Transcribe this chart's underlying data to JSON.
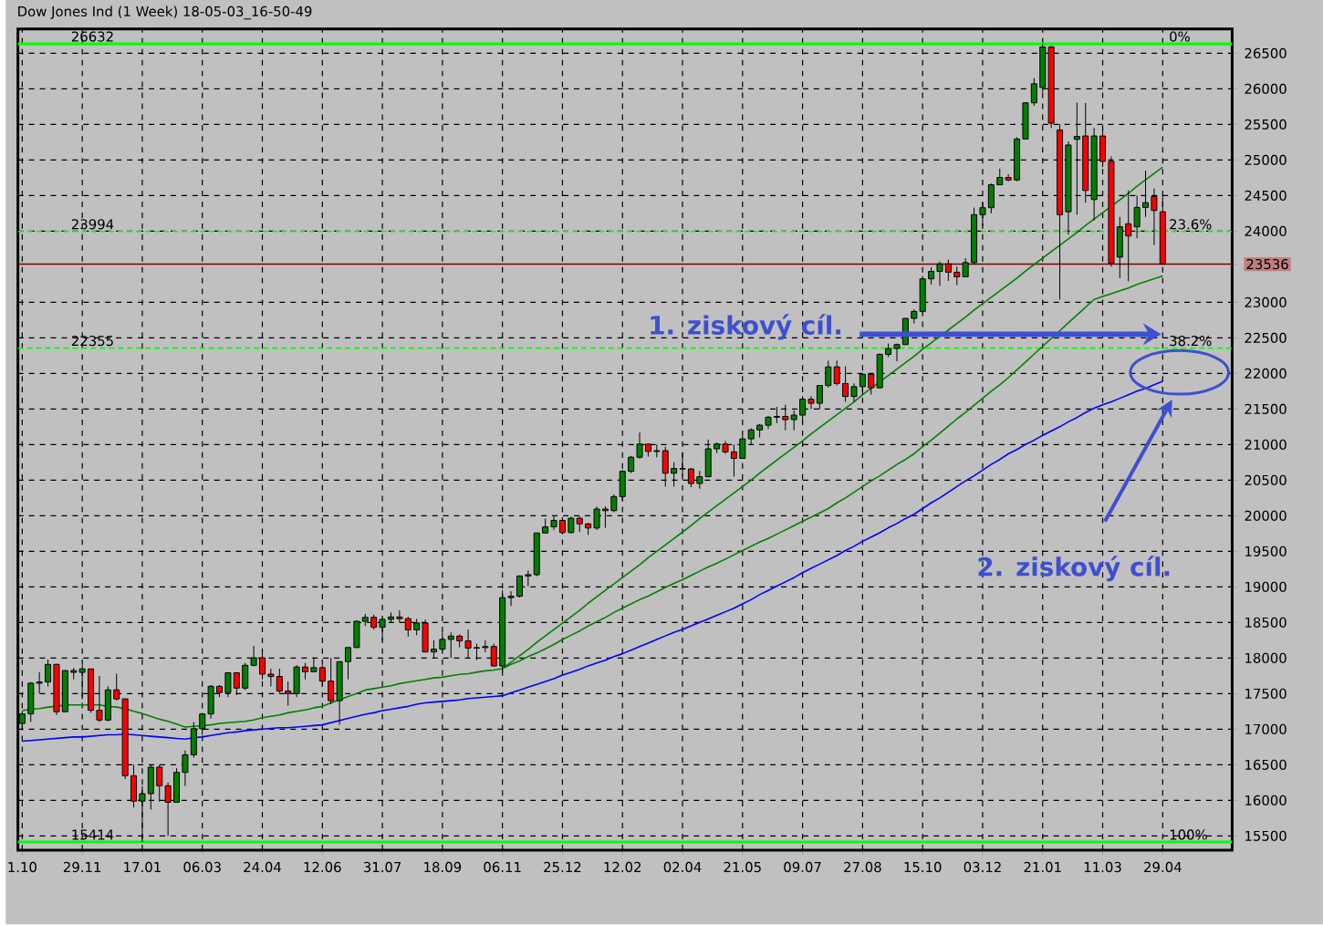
{
  "chart_data": {
    "type": "candlestick",
    "title": "Dow Jones Ind (1 Week) 18-05-03_16-50-49",
    "categories": [
      "1.10",
      null,
      null,
      null,
      null,
      null,
      null,
      "29.11",
      null,
      null,
      null,
      null,
      null,
      null,
      "17.01",
      null,
      null,
      null,
      null,
      null,
      null,
      "06.03",
      null,
      null,
      null,
      null,
      null,
      null,
      "24.04",
      null,
      null,
      null,
      null,
      null,
      null,
      "12.06",
      null,
      null,
      null,
      null,
      null,
      null,
      "31.07",
      null,
      null,
      null,
      null,
      null,
      null,
      "18.09",
      null,
      null,
      null,
      null,
      null,
      null,
      "06.11",
      null,
      null,
      null,
      null,
      null,
      null,
      "25.12",
      null,
      null,
      null,
      null,
      null,
      null,
      "12.02",
      null,
      null,
      null,
      null,
      null,
      null,
      "02.04",
      null,
      null,
      null,
      null,
      null,
      null,
      "21.05",
      null,
      null,
      null,
      null,
      null,
      null,
      "09.07",
      null,
      null,
      null,
      null,
      null,
      null,
      "27.08",
      null,
      null,
      null,
      null,
      null,
      null,
      "15.10",
      null,
      null,
      null,
      null,
      null,
      null,
      "03.12",
      null,
      null,
      null,
      null,
      null,
      null,
      "21.01",
      null,
      null,
      null,
      null,
      null,
      null,
      "11.03",
      null,
      null,
      null,
      null,
      null,
      null,
      "29.04"
    ],
    "ohlc": [
      [
        17080,
        17250,
        16990,
        17215
      ],
      [
        17215,
        17660,
        17100,
        17646
      ],
      [
        17646,
        17800,
        17500,
        17663
      ],
      [
        17663,
        17980,
        17600,
        17910
      ],
      [
        17910,
        17920,
        17200,
        17245
      ],
      [
        17245,
        17830,
        17240,
        17823
      ],
      [
        17823,
        17860,
        17700,
        17798
      ],
      [
        17798,
        17900,
        17420,
        17847
      ],
      [
        17847,
        17850,
        17230,
        17265
      ],
      [
        17265,
        17750,
        17100,
        17128
      ],
      [
        17128,
        17600,
        17110,
        17552
      ],
      [
        17552,
        17780,
        17400,
        17425
      ],
      [
        17425,
        17430,
        16300,
        16346
      ],
      [
        16346,
        16500,
        15900,
        15988
      ],
      [
        15988,
        16200,
        15414,
        16093
      ],
      [
        16093,
        16500,
        15870,
        16466
      ],
      [
        16466,
        16500,
        15980,
        16204
      ],
      [
        16204,
        16250,
        15500,
        15973
      ],
      [
        15973,
        16450,
        15970,
        16392
      ],
      [
        16392,
        16700,
        16200,
        16639
      ],
      [
        16639,
        17100,
        16600,
        17006
      ],
      [
        17006,
        17230,
        16920,
        17213
      ],
      [
        17213,
        17620,
        17150,
        17602
      ],
      [
        17602,
        17620,
        17450,
        17515
      ],
      [
        17515,
        17800,
        17450,
        17792
      ],
      [
        17792,
        17800,
        17480,
        17577
      ],
      [
        17577,
        17930,
        17550,
        17897
      ],
      [
        17897,
        18170,
        17880,
        18003
      ],
      [
        18003,
        18080,
        17700,
        17773
      ],
      [
        17773,
        17850,
        17600,
        17740
      ],
      [
        17740,
        17850,
        17500,
        17535
      ],
      [
        17535,
        17670,
        17330,
        17500
      ],
      [
        17500,
        17900,
        17450,
        17873
      ],
      [
        17873,
        17930,
        17700,
        17807
      ],
      [
        17807,
        18010,
        17800,
        17865
      ],
      [
        17865,
        17900,
        17600,
        17675
      ],
      [
        17675,
        18000,
        17350,
        17400
      ],
      [
        17400,
        17950,
        17060,
        17949
      ],
      [
        17949,
        18150,
        17700,
        18147
      ],
      [
        18147,
        18530,
        18140,
        18516
      ],
      [
        18516,
        18620,
        18450,
        18571
      ],
      [
        18571,
        18610,
        18400,
        18432
      ],
      [
        18432,
        18550,
        18250,
        18543
      ],
      [
        18543,
        18640,
        18500,
        18577
      ],
      [
        18577,
        18670,
        18500,
        18553
      ],
      [
        18553,
        18580,
        18300,
        18395
      ],
      [
        18395,
        18550,
        18320,
        18492
      ],
      [
        18492,
        18540,
        18080,
        18085
      ],
      [
        18085,
        18250,
        17990,
        18124
      ],
      [
        18124,
        18360,
        18100,
        18262
      ],
      [
        18262,
        18360,
        18000,
        18308
      ],
      [
        18308,
        18330,
        18150,
        18240
      ],
      [
        18240,
        18400,
        18000,
        18138
      ],
      [
        18138,
        18200,
        17970,
        18146
      ],
      [
        18146,
        18250,
        18080,
        18161
      ],
      [
        18161,
        18200,
        17880,
        17888
      ],
      [
        17888,
        18950,
        17800,
        18848
      ],
      [
        18848,
        18940,
        18730,
        18868
      ],
      [
        18868,
        19160,
        18850,
        19153
      ],
      [
        19153,
        19230,
        19010,
        19171
      ],
      [
        19171,
        19760,
        19150,
        19757
      ],
      [
        19757,
        19960,
        19750,
        19843
      ],
      [
        19843,
        19990,
        19800,
        19934
      ],
      [
        19934,
        19980,
        19740,
        19763
      ],
      [
        19763,
        19990,
        19750,
        19964
      ],
      [
        19964,
        19990,
        19770,
        19886
      ],
      [
        19886,
        19900,
        19730,
        19827
      ],
      [
        19827,
        20130,
        19800,
        20094
      ],
      [
        20094,
        20130,
        19830,
        20071
      ],
      [
        20071,
        20300,
        20050,
        20269
      ],
      [
        20269,
        20640,
        20200,
        20624
      ],
      [
        20624,
        20840,
        20600,
        20822
      ],
      [
        20822,
        21170,
        20800,
        21006
      ],
      [
        21006,
        21010,
        20830,
        20903
      ],
      [
        20903,
        21000,
        20820,
        20914
      ],
      [
        20914,
        20970,
        20410,
        20597
      ],
      [
        20597,
        20750,
        20410,
        20663
      ],
      [
        20663,
        20890,
        20560,
        20656
      ],
      [
        20656,
        20670,
        20400,
        20453
      ],
      [
        20453,
        20630,
        20380,
        20548
      ],
      [
        20548,
        21070,
        20540,
        20940
      ],
      [
        20940,
        21030,
        20880,
        21007
      ],
      [
        21007,
        21050,
        20870,
        20897
      ],
      [
        20897,
        21000,
        20550,
        20805
      ],
      [
        20805,
        21120,
        20800,
        21080
      ],
      [
        21080,
        21230,
        20990,
        21206
      ],
      [
        21206,
        21290,
        21100,
        21272
      ],
      [
        21272,
        21400,
        21220,
        21384
      ],
      [
        21384,
        21530,
        21300,
        21395
      ],
      [
        21395,
        21560,
        21200,
        21350
      ],
      [
        21350,
        21480,
        21200,
        21414
      ],
      [
        21414,
        21680,
        21300,
        21638
      ],
      [
        21638,
        21680,
        21500,
        21580
      ],
      [
        21580,
        21830,
        21500,
        21830
      ],
      [
        21830,
        22180,
        21800,
        22092
      ],
      [
        22092,
        22180,
        21830,
        21858
      ],
      [
        21858,
        22100,
        21600,
        21675
      ],
      [
        21675,
        21860,
        21600,
        21814
      ],
      [
        21814,
        22000,
        21700,
        21988
      ],
      [
        21988,
        22000,
        21700,
        21798
      ],
      [
        21798,
        22280,
        21790,
        22268
      ],
      [
        22268,
        22420,
        22230,
        22350
      ],
      [
        22350,
        22420,
        22170,
        22405
      ],
      [
        22405,
        22780,
        22400,
        22773
      ],
      [
        22773,
        22900,
        22700,
        22871
      ],
      [
        22871,
        23370,
        22850,
        23329
      ],
      [
        23329,
        23490,
        23250,
        23434
      ],
      [
        23434,
        23570,
        23230,
        23539
      ],
      [
        23539,
        23600,
        23300,
        23422
      ],
      [
        23422,
        23500,
        23240,
        23358
      ],
      [
        23358,
        23620,
        23350,
        23558
      ],
      [
        23558,
        24330,
        23530,
        24231
      ],
      [
        24231,
        24400,
        24070,
        24329
      ],
      [
        24329,
        24670,
        24250,
        24651
      ],
      [
        24651,
        24880,
        24650,
        24754
      ],
      [
        24754,
        24800,
        24700,
        24719
      ],
      [
        24719,
        25320,
        24700,
        25295
      ],
      [
        25295,
        25810,
        25290,
        25803
      ],
      [
        25803,
        26150,
        25760,
        26071
      ],
      [
        26019,
        26632,
        25950,
        26589
      ],
      [
        26589,
        26600,
        25450,
        25516
      ],
      [
        25422,
        25500,
        23038,
        24231
      ],
      [
        24272,
        25260,
        23950,
        25210
      ],
      [
        25290,
        25805,
        24231,
        25330
      ],
      [
        25337,
        25800,
        24400,
        24571
      ],
      [
        24443,
        25450,
        24150,
        25337
      ],
      [
        25337,
        25450,
        24900,
        24980
      ],
      [
        24980,
        25050,
        23500,
        23549
      ],
      [
        23634,
        24200,
        23340,
        24060
      ],
      [
        24103,
        24571,
        23293,
        23932
      ],
      [
        24060,
        24500,
        23900,
        24333
      ],
      [
        24333,
        24850,
        24200,
        24400
      ],
      [
        24486,
        24600,
        23805,
        24290
      ],
      [
        24272,
        24494,
        23536,
        23536
      ]
    ],
    "series": [
      {
        "type": "line",
        "color": "#008000",
        "values": [
          17260,
          17280,
          17290,
          17310,
          17320,
          17340,
          17340,
          17340,
          17340,
          17340,
          17320,
          17310,
          17290,
          17250,
          17220,
          17180,
          17140,
          17110,
          17070,
          17030,
          17040,
          17050,
          17060,
          17080,
          17090,
          17100,
          17110,
          17130,
          17160,
          17180,
          17200,
          17230,
          17250,
          17270,
          17300,
          17320,
          17370,
          17410,
          17460,
          17500,
          17550,
          17570,
          17590,
          17610,
          17640,
          17660,
          17680,
          17700,
          17720,
          17730,
          17750,
          17770,
          17780,
          17800,
          17820,
          17830,
          17850,
          17910,
          17960,
          18020,
          18070,
          18130,
          18190,
          18260,
          18320,
          18380,
          18450,
          18510,
          18570,
          18640,
          18700,
          18760,
          18820,
          18870,
          18930,
          18990,
          19050,
          19100,
          19160,
          19220,
          19280,
          19330,
          19390,
          19450,
          19510,
          19570,
          19630,
          19680,
          19740,
          19800,
          19860,
          19920,
          19980,
          20040,
          20100,
          20180,
          20250,
          20330,
          20410,
          20490,
          20560,
          20640,
          20720,
          20790,
          20870,
          20970,
          21060,
          21160,
          21260,
          21360,
          21450,
          21550,
          21650,
          21750,
          21840,
          21940,
          22050,
          22160,
          22270,
          22380,
          22490,
          22600,
          22710,
          22820,
          22930,
          23040,
          23080,
          23120,
          23160,
          23200,
          23250,
          23290,
          23330,
          23370
        ]
      },
      {
        "type": "line",
        "color": "#0000ff",
        "values": [
          16830,
          16840,
          16850,
          16860,
          16870,
          16880,
          16890,
          16890,
          16900,
          16910,
          16920,
          16920,
          16930,
          16920,
          16910,
          16900,
          16890,
          16880,
          16870,
          16860,
          16880,
          16890,
          16910,
          16930,
          16950,
          16960,
          16980,
          16990,
          17000,
          17010,
          17020,
          17020,
          17030,
          17040,
          17050,
          17060,
          17090,
          17120,
          17150,
          17180,
          17210,
          17230,
          17260,
          17280,
          17300,
          17320,
          17350,
          17370,
          17380,
          17390,
          17400,
          17410,
          17430,
          17440,
          17450,
          17460,
          17470,
          17510,
          17550,
          17590,
          17630,
          17670,
          17710,
          17760,
          17800,
          17840,
          17890,
          17930,
          17970,
          18020,
          18060,
          18110,
          18160,
          18210,
          18260,
          18310,
          18360,
          18400,
          18450,
          18500,
          18550,
          18600,
          18650,
          18700,
          18760,
          18820,
          18890,
          18950,
          19010,
          19070,
          19130,
          19200,
          19260,
          19320,
          19380,
          19440,
          19510,
          19570,
          19640,
          19700,
          19760,
          19830,
          19890,
          19960,
          20020,
          20100,
          20180,
          20250,
          20330,
          20410,
          20490,
          20560,
          20640,
          20720,
          20790,
          20870,
          20930,
          21000,
          21060,
          21130,
          21190,
          21250,
          21320,
          21380,
          21450,
          21510,
          21560,
          21600,
          21650,
          21700,
          21750,
          21790,
          21840,
          21890
        ]
      },
      {
        "type": "line",
        "color": "#008000",
        "values": [
          null,
          null,
          null,
          null,
          null,
          null,
          null,
          null,
          null,
          null,
          null,
          null,
          null,
          null,
          null,
          null,
          null,
          null,
          null,
          null,
          null,
          null,
          null,
          null,
          null,
          null,
          null,
          null,
          null,
          null,
          null,
          null,
          null,
          null,
          null,
          null,
          null,
          null,
          null,
          null,
          null,
          null,
          null,
          null,
          null,
          null,
          null,
          null,
          null,
          null,
          null,
          null,
          null,
          null,
          null,
          null,
          17850,
          17940,
          18030,
          18120,
          18220,
          18310,
          18400,
          18490,
          18580,
          18670,
          18770,
          18860,
          18950,
          19040,
          19130,
          19220,
          19310,
          19410,
          19500,
          19590,
          19680,
          19770,
          19860,
          19960,
          20050,
          20140,
          20230,
          20320,
          20410,
          20500,
          20600,
          20690,
          20780,
          20870,
          20960,
          21050,
          21150,
          21240,
          21330,
          21420,
          21510,
          21600,
          21700,
          21790,
          21880,
          21970,
          22060,
          22150,
          22240,
          22340,
          22430,
          22520,
          22610,
          22700,
          22790,
          22890,
          22980,
          23070,
          23160,
          23250,
          23340,
          23440,
          23530,
          23620,
          23710,
          23800,
          23890,
          23980,
          24080,
          24170,
          24260,
          24350,
          24440,
          24530,
          24630,
          24720,
          24810,
          24900
        ]
      }
    ],
    "ylim": [
      15300,
      26840
    ],
    "yticks": [
      15500,
      16000,
      16500,
      17000,
      17500,
      18000,
      18500,
      19000,
      19500,
      20000,
      20500,
      21000,
      21500,
      22000,
      22500,
      23000,
      23536,
      24000,
      24500,
      25000,
      25500,
      26000,
      26500
    ],
    "grid": true,
    "ref_lines": [
      {
        "axis": "y",
        "value": 26632,
        "label": "26632",
        "color": "#00ff00",
        "line_style": "solid"
      },
      {
        "axis": "y",
        "value": 23994,
        "label": "23994",
        "color": "#00ff00",
        "line_style": "dashed"
      },
      {
        "axis": "y",
        "value": 22355,
        "label": "22355",
        "color": "#00ff00",
        "line_style": "dashed"
      },
      {
        "axis": "y",
        "value": 15414,
        "label": "15414",
        "color": "#00ff00",
        "line_style": "solid"
      },
      {
        "axis": "y",
        "value": 23536,
        "color": "#800000",
        "line_style": "solid"
      }
    ],
    "annotations": [
      "1. ziskový cíl.",
      "2. ziskový cíl.",
      {
        "text": "0%",
        "y": 26632
      },
      {
        "text": "23.6%",
        "y": 23994
      },
      {
        "text": "38.2%",
        "y": 22355
      },
      {
        "text": "100%",
        "y": 15414
      }
    ]
  }
}
